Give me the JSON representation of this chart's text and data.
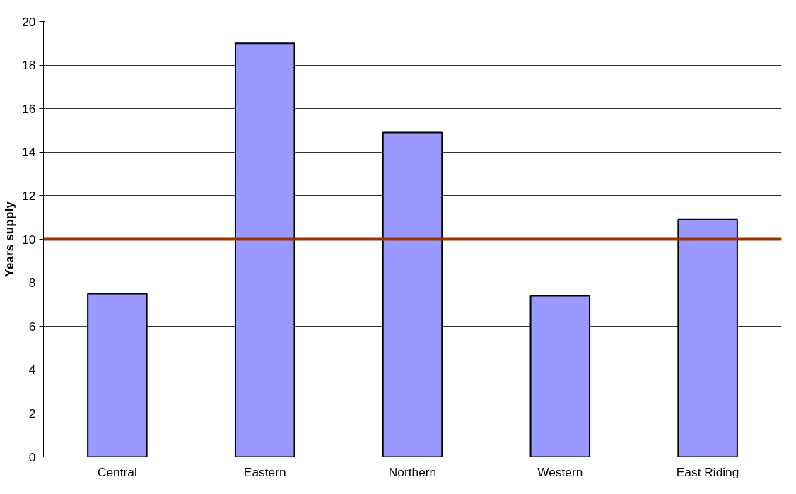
{
  "chart_data": {
    "type": "bar",
    "ylabel": "Years supply",
    "categories": [
      "Central",
      "Eastern",
      "Northern",
      "Western",
      "East Riding"
    ],
    "values": [
      7.5,
      19,
      14.9,
      7.4,
      10.9
    ],
    "color": "#9999ff",
    "ylim": [
      0,
      20
    ],
    "yticks": [
      0,
      2,
      4,
      6,
      8,
      10,
      12,
      14,
      16,
      18,
      20
    ],
    "grid": "y",
    "ref_lines": [
      {
        "axis": "y",
        "value": 10,
        "color": "#993300"
      }
    ]
  }
}
